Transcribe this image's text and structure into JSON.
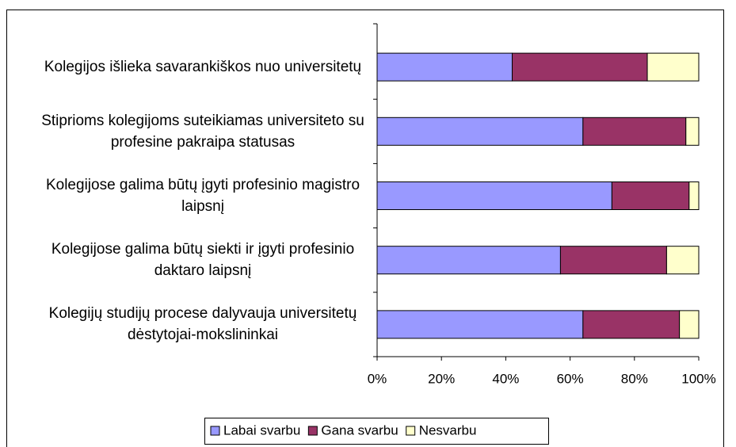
{
  "chart_data": {
    "type": "bar",
    "orientation": "horizontal",
    "stacked": true,
    "categories": [
      "Kolegijos išlieka savarankiškos nuo universitetų",
      "Stiprioms kolegijoms suteikiamas universiteto su profesine pakraipa statusas",
      "Kolegijose galima būtų įgyti profesinio magistro laipsnį",
      "Kolegijose galima būtų siekti ir įgyti profesinio daktaro laipsnį",
      "Kolegijų studijų procese dalyvauja universitetų dėstytojai-mokslininkai"
    ],
    "series": [
      {
        "name": "Labai svarbu",
        "color": "#9999ff",
        "values": [
          42,
          64,
          73,
          57,
          64
        ]
      },
      {
        "name": "Gana svarbu",
        "color": "#993366",
        "values": [
          42,
          32,
          24,
          33,
          30
        ]
      },
      {
        "name": "Nesvarbu",
        "color": "#ffffcc",
        "values": [
          16,
          4,
          3,
          10,
          6
        ]
      }
    ],
    "xlim": [
      0,
      100
    ],
    "xticks": [
      {
        "value": 0,
        "label": "0%"
      },
      {
        "value": 20,
        "label": "20%"
      },
      {
        "value": 40,
        "label": "40%"
      },
      {
        "value": 60,
        "label": "60%"
      },
      {
        "value": 80,
        "label": "80%"
      },
      {
        "value": 100,
        "label": "100%"
      }
    ],
    "legend": "bottom"
  }
}
